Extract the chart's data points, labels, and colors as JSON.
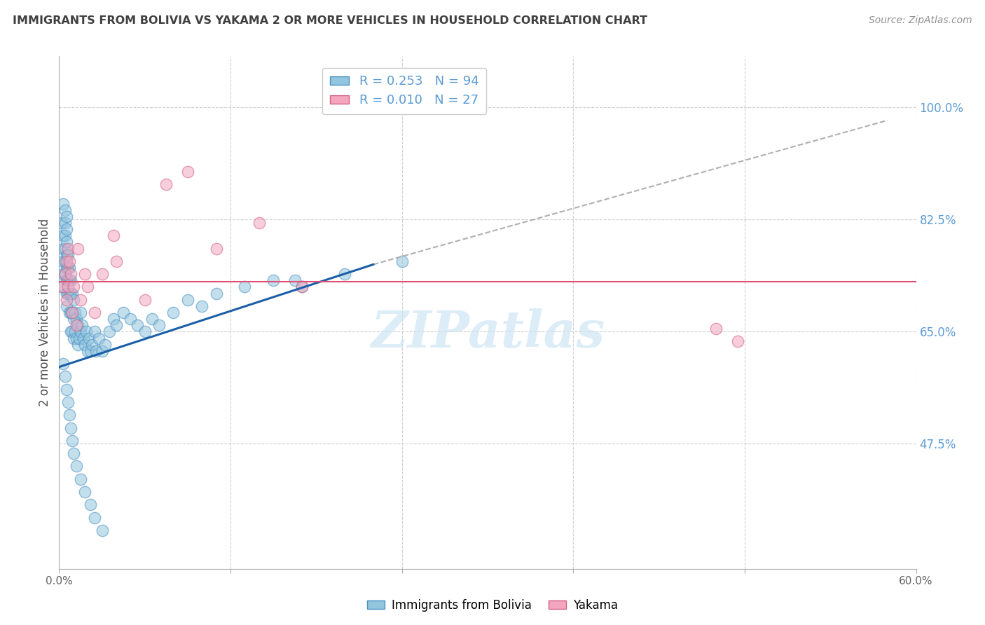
{
  "title": "IMMIGRANTS FROM BOLIVIA VS YAKAMA 2 OR MORE VEHICLES IN HOUSEHOLD CORRELATION CHART",
  "source_text": "Source: ZipAtlas.com",
  "ylabel": "2 or more Vehicles in Household",
  "xlim": [
    0.0,
    0.6
  ],
  "ylim": [
    0.28,
    1.08
  ],
  "x_ticks": [
    0.0,
    0.12,
    0.24,
    0.36,
    0.48,
    0.6
  ],
  "x_tick_labels": [
    "0.0%",
    "",
    "",
    "",
    "",
    "60.0%"
  ],
  "y_ticks_right": [
    1.0,
    0.825,
    0.65,
    0.475
  ],
  "y_tick_labels_right": [
    "100.0%",
    "82.5%",
    "65.0%",
    "47.5%"
  ],
  "watermark": "ZIPatlas",
  "blue_color": "#92c5de",
  "blue_edge_color": "#4a90c4",
  "pink_color": "#f4a6c0",
  "pink_edge_color": "#d06080",
  "blue_line_color": "#1a5fa8",
  "pink_line_color": "#e05070",
  "dash_line_color": "#b0b0b0",
  "grid_color": "#d0d0d0",
  "background_color": "#ffffff",
  "title_color": "#404040",
  "right_tick_color": "#5b9bd5",
  "legend_R_color": "#5b9bd5",
  "legend_N_blue_color": "#e05070",
  "blue_x": [
    0.002,
    0.002,
    0.003,
    0.003,
    0.003,
    0.003,
    0.003,
    0.004,
    0.004,
    0.004,
    0.004,
    0.004,
    0.004,
    0.005,
    0.005,
    0.005,
    0.005,
    0.005,
    0.005,
    0.005,
    0.005,
    0.006,
    0.006,
    0.006,
    0.006,
    0.007,
    0.007,
    0.007,
    0.007,
    0.008,
    0.008,
    0.008,
    0.008,
    0.009,
    0.009,
    0.009,
    0.01,
    0.01,
    0.01,
    0.011,
    0.011,
    0.012,
    0.012,
    0.013,
    0.013,
    0.014,
    0.015,
    0.015,
    0.016,
    0.017,
    0.018,
    0.019,
    0.02,
    0.021,
    0.022,
    0.023,
    0.025,
    0.026,
    0.028,
    0.03,
    0.032,
    0.035,
    0.038,
    0.04,
    0.045,
    0.05,
    0.055,
    0.06,
    0.065,
    0.07,
    0.08,
    0.09,
    0.1,
    0.11,
    0.13,
    0.15,
    0.17,
    0.2,
    0.24,
    0.165,
    0.003,
    0.004,
    0.005,
    0.006,
    0.007,
    0.008,
    0.009,
    0.01,
    0.012,
    0.015,
    0.018,
    0.022,
    0.025,
    0.03
  ],
  "blue_y": [
    0.72,
    0.82,
    0.8,
    0.85,
    0.78,
    0.76,
    0.74,
    0.84,
    0.82,
    0.8,
    0.78,
    0.76,
    0.74,
    0.83,
    0.81,
    0.79,
    0.77,
    0.75,
    0.73,
    0.71,
    0.69,
    0.77,
    0.75,
    0.73,
    0.71,
    0.75,
    0.73,
    0.71,
    0.68,
    0.73,
    0.71,
    0.68,
    0.65,
    0.71,
    0.68,
    0.65,
    0.7,
    0.67,
    0.64,
    0.68,
    0.65,
    0.67,
    0.64,
    0.66,
    0.63,
    0.64,
    0.68,
    0.65,
    0.66,
    0.64,
    0.63,
    0.65,
    0.62,
    0.64,
    0.62,
    0.63,
    0.65,
    0.62,
    0.64,
    0.62,
    0.63,
    0.65,
    0.67,
    0.66,
    0.68,
    0.67,
    0.66,
    0.65,
    0.67,
    0.66,
    0.68,
    0.7,
    0.69,
    0.71,
    0.72,
    0.73,
    0.72,
    0.74,
    0.76,
    0.73,
    0.6,
    0.58,
    0.56,
    0.54,
    0.52,
    0.5,
    0.48,
    0.46,
    0.44,
    0.42,
    0.4,
    0.38,
    0.36,
    0.34
  ],
  "pink_x": [
    0.003,
    0.004,
    0.005,
    0.005,
    0.006,
    0.006,
    0.007,
    0.008,
    0.009,
    0.01,
    0.012,
    0.013,
    0.015,
    0.018,
    0.02,
    0.025,
    0.03,
    0.038,
    0.04,
    0.06,
    0.075,
    0.09,
    0.11,
    0.14,
    0.46,
    0.475,
    0.17
  ],
  "pink_y": [
    0.72,
    0.74,
    0.7,
    0.76,
    0.78,
    0.72,
    0.76,
    0.74,
    0.68,
    0.72,
    0.66,
    0.78,
    0.7,
    0.74,
    0.72,
    0.68,
    0.74,
    0.8,
    0.76,
    0.7,
    0.88,
    0.9,
    0.78,
    0.82,
    0.655,
    0.635,
    0.72
  ],
  "blue_line_x0": 0.0,
  "blue_line_x1": 0.22,
  "blue_line_y0": 0.595,
  "blue_line_y1": 0.755,
  "dash_line_x0": 0.22,
  "dash_line_x1": 0.58,
  "dash_line_y0": 0.755,
  "dash_line_y1": 0.98,
  "pink_line_y": 0.728
}
